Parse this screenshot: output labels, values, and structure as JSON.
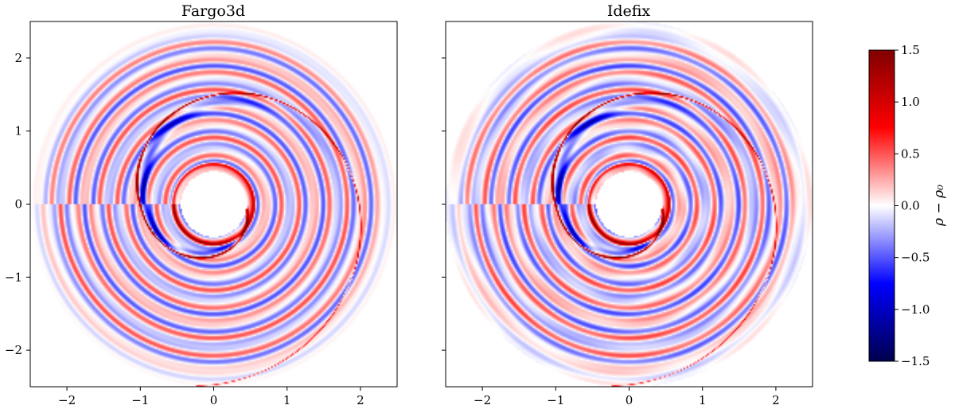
{
  "chart_data": [
    {
      "type": "heatmap",
      "title": "Fargo3d",
      "xlabel": "",
      "ylabel": "",
      "xlim": [
        -2.5,
        2.5
      ],
      "ylim": [
        -2.5,
        2.5
      ],
      "xticks": [
        -2,
        -1,
        0,
        1,
        2
      ],
      "yticks": [
        -2,
        -1,
        0,
        1,
        2
      ],
      "xtick_labels": [
        "−2",
        "−1",
        "0",
        "1",
        "2"
      ],
      "ytick_labels": [
        "−2",
        "−1",
        "0",
        "1",
        "2"
      ],
      "show_yticklabels": true,
      "disk": {
        "r_in": 0.45,
        "r_out": 2.5
      },
      "planet": {
        "x": -1.0,
        "y": 0.0
      },
      "spiral_pitch": 0.55,
      "field": "density perturbation"
    },
    {
      "type": "heatmap",
      "title": "Idefix",
      "xlabel": "",
      "ylabel": "",
      "xlim": [
        -2.5,
        2.5
      ],
      "ylim": [
        -2.5,
        2.5
      ],
      "xticks": [
        -2,
        -1,
        0,
        1,
        2
      ],
      "yticks": [
        -2,
        -1,
        0,
        1,
        2
      ],
      "xtick_labels": [
        "−2",
        "−1",
        "0",
        "1",
        "2"
      ],
      "ytick_labels": [
        "",
        "",
        "",
        "",
        ""
      ],
      "show_yticklabels": false,
      "disk": {
        "r_in": 0.45,
        "r_out": 2.5
      },
      "planet": {
        "x": -1.0,
        "y": 0.0
      },
      "spiral_pitch": 0.55,
      "field": "density perturbation"
    }
  ],
  "colorbar": {
    "label": "ρ − ρ₀",
    "min": -1.5,
    "max": 1.5,
    "ticks": [
      1.5,
      1.0,
      0.5,
      0.0,
      -0.5,
      -1.0,
      -1.5
    ],
    "tick_labels": [
      "1.5",
      "1.0",
      "0.5",
      "0.0",
      "−0.5",
      "−1.0",
      "−1.5"
    ],
    "colormap": "seismic",
    "colors": {
      "low": "#00004c",
      "mid_low": "#0000ff",
      "center": "#ffffff",
      "mid_high": "#ff0000",
      "high": "#800000"
    }
  }
}
